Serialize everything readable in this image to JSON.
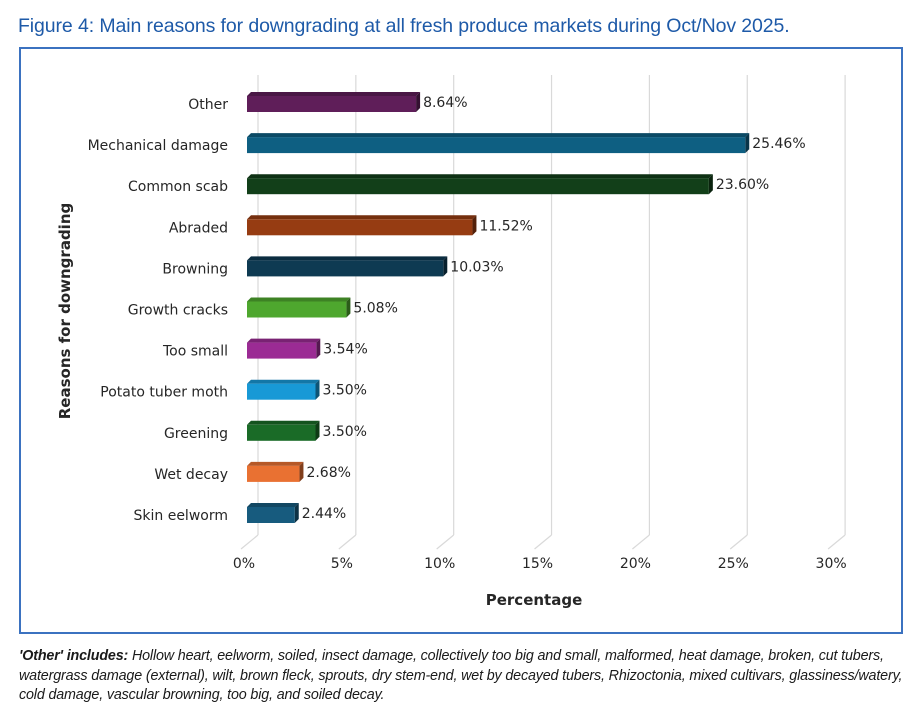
{
  "figure": {
    "title": "Figure 4: Main reasons for downgrading at all fresh produce markets during Oct/Nov 2025."
  },
  "footnote": {
    "lead": "'Other' includes:",
    "text": " Hollow heart, eelworm, soiled, insect damage, collectively too big and small, malformed, heat damage, broken, cut tubers, watergrass damage (external), wilt, brown fleck, sprouts, dry stem-end, wet by decayed tubers, Rhizoctonia, mixed cultivars, glassiness/watery, cold damage, vascular browning, too big, and soiled decay."
  },
  "colors": {
    "title": "#1E5AA8",
    "frame": "#3B72C0",
    "grid": "#D9D9D9"
  },
  "chart_data": {
    "type": "bar",
    "orientation": "horizontal",
    "style": "3d",
    "title": "",
    "xlabel": "Percentage",
    "ylabel": "Reasons for downgrading",
    "xlim": [
      0,
      30
    ],
    "x_ticks": [
      0,
      5,
      10,
      15,
      20,
      25,
      30
    ],
    "x_tick_labels": [
      "0%",
      "5%",
      "10%",
      "15%",
      "20%",
      "25%",
      "30%"
    ],
    "grid": true,
    "legend": "none",
    "categories": [
      "Other",
      "Mechanical damage",
      "Common scab",
      "Abraded",
      "Browning",
      "Growth cracks",
      "Too small",
      "Potato tuber moth",
      "Greening",
      "Wet decay",
      "Skin eelworm"
    ],
    "values": [
      8.64,
      25.46,
      23.6,
      11.52,
      10.03,
      5.08,
      3.54,
      3.5,
      3.5,
      2.68,
      2.44
    ],
    "data_labels": [
      "8.64%",
      "25.46%",
      "23.60%",
      "11.52%",
      "10.03%",
      "5.08%",
      "3.54%",
      "3.50%",
      "3.50%",
      "2.68%",
      "2.44%"
    ],
    "bar_colors": [
      "#5F1E59",
      "#0E5F82",
      "#123F19",
      "#963C12",
      "#0E3A52",
      "#4EA72E",
      "#9B2B94",
      "#1899D6",
      "#1A6B27",
      "#E97132",
      "#175B7E"
    ]
  }
}
